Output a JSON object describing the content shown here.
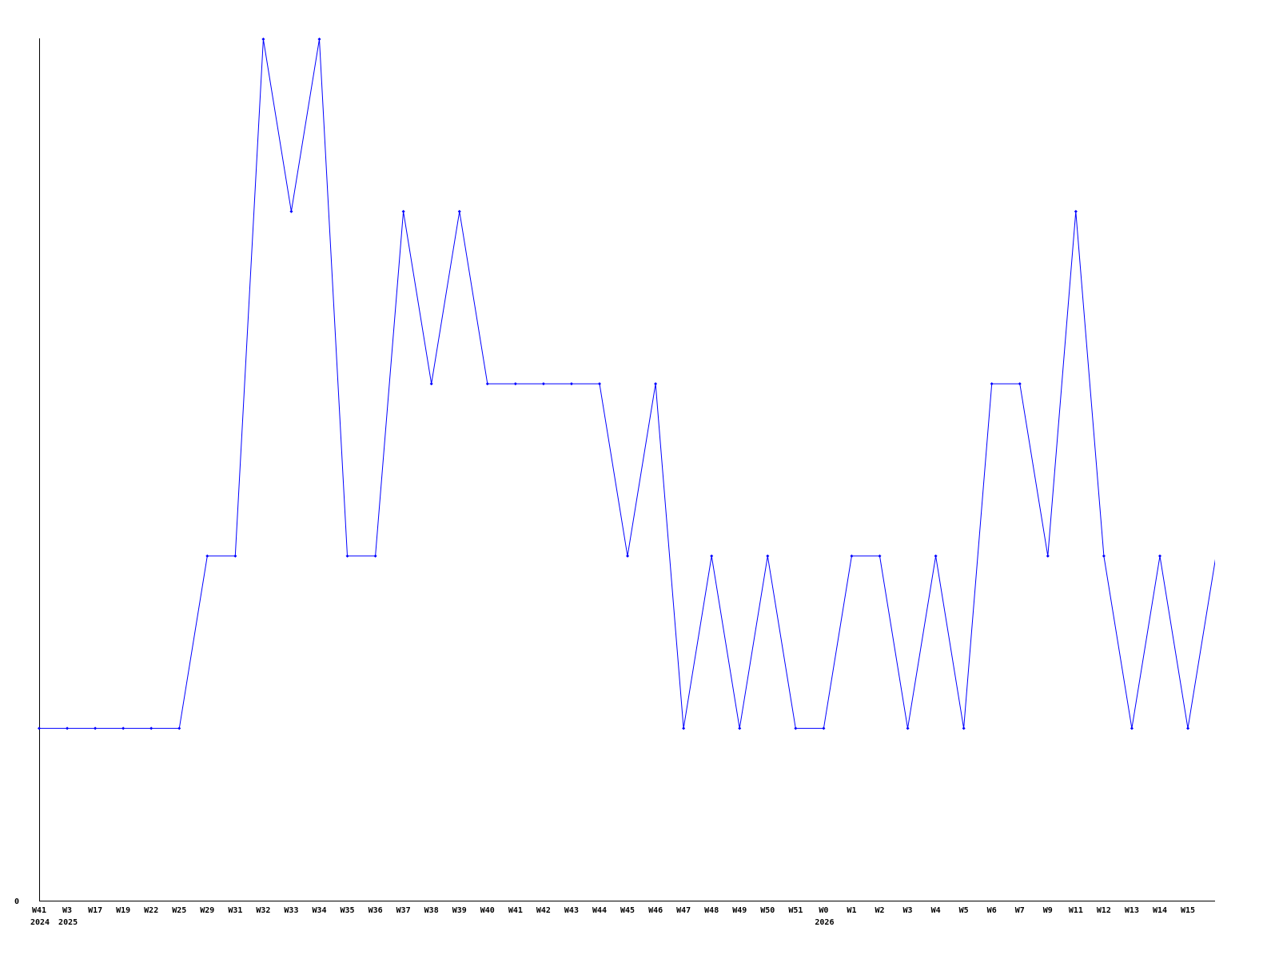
{
  "chart_data": {
    "type": "line",
    "title": "",
    "xlabel": "",
    "ylabel": "",
    "y_tick_labels": [
      "0"
    ],
    "ylim": [
      0,
      5
    ],
    "grid": false,
    "line_color": "#0000ff",
    "categories": [
      "W41",
      "W3",
      "W17",
      "W19",
      "W22",
      "W25",
      "W29",
      "W31",
      "W32",
      "W33",
      "W34",
      "W35",
      "W36",
      "W37",
      "W38",
      "W39",
      "W40",
      "W41",
      "W42",
      "W43",
      "W44",
      "W45",
      "W46",
      "W47",
      "W48",
      "W49",
      "W50",
      "W51",
      "W0",
      "W1",
      "W2",
      "W3",
      "W4",
      "W5",
      "W6",
      "W7",
      "W9",
      "W11",
      "W12",
      "W13",
      "W14",
      "W15",
      ""
    ],
    "year_labels": [
      {
        "index": 0,
        "label": "2024"
      },
      {
        "index": 1,
        "label": "2025"
      },
      {
        "index": 28,
        "label": "2026"
      }
    ],
    "values": [
      1,
      1,
      1,
      1,
      1,
      1,
      2,
      2,
      5,
      4,
      5,
      2,
      2,
      4,
      3,
      4,
      3,
      3,
      3,
      3,
      3,
      2,
      3,
      1,
      2,
      1,
      2,
      1,
      1,
      2,
      2,
      1,
      2,
      1,
      3,
      3,
      2,
      4,
      2,
      1,
      2,
      1,
      2
    ]
  }
}
